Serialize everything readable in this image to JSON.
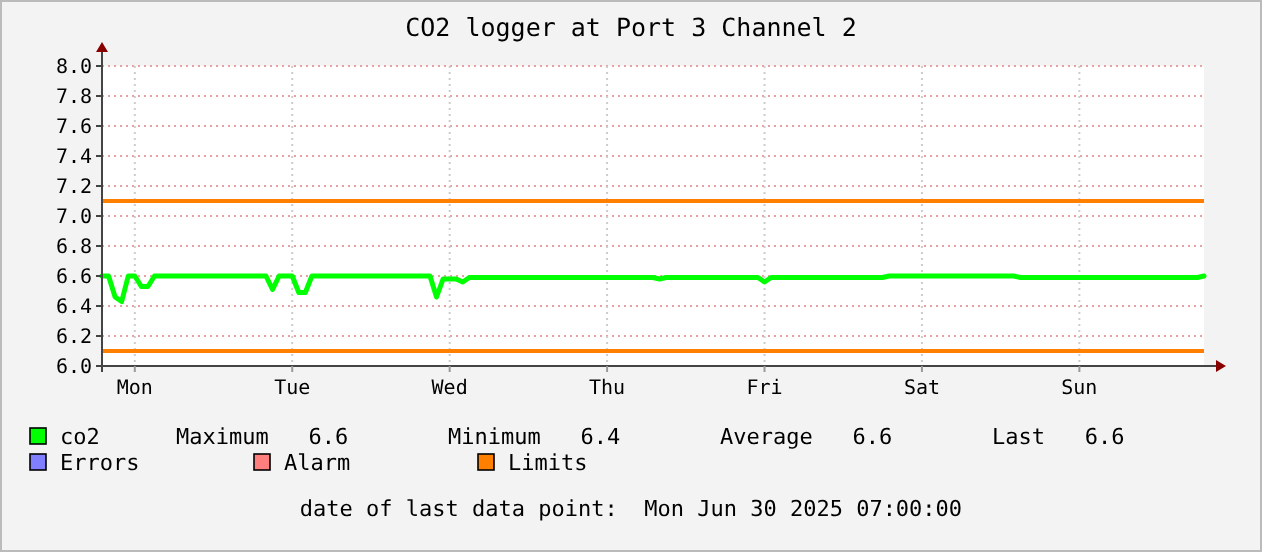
{
  "chart_data": {
    "type": "line",
    "title": "CO2 logger at Port 3 Channel 2",
    "categories": [
      null,
      null,
      null,
      null,
      null,
      "Mon",
      null,
      null,
      null,
      null,
      null,
      null,
      null,
      null,
      null,
      null,
      null,
      null,
      null,
      null,
      null,
      null,
      null,
      null,
      null,
      null,
      null,
      null,
      null,
      "Tue",
      null,
      null,
      null,
      null,
      null,
      null,
      null,
      null,
      null,
      null,
      null,
      null,
      null,
      null,
      null,
      null,
      null,
      null,
      null,
      null,
      null,
      null,
      null,
      "Wed",
      null,
      null,
      null,
      null,
      null,
      null,
      null,
      null,
      null,
      null,
      null,
      null,
      null,
      null,
      null,
      null,
      null,
      null,
      null,
      null,
      null,
      null,
      null,
      "Thu",
      null,
      null,
      null,
      null,
      null,
      null,
      null,
      null,
      null,
      null,
      null,
      null,
      null,
      null,
      null,
      null,
      null,
      null,
      null,
      null,
      null,
      null,
      null,
      "Fri",
      null,
      null,
      null,
      null,
      null,
      null,
      null,
      null,
      null,
      null,
      null,
      null,
      null,
      null,
      null,
      null,
      null,
      null,
      null,
      null,
      null,
      null,
      null,
      "Sat",
      null,
      null,
      null,
      null,
      null,
      null,
      null,
      null,
      null,
      null,
      null,
      null,
      null,
      null,
      null,
      null,
      null,
      null,
      null,
      null,
      null,
      null,
      null,
      "Sun",
      null,
      null,
      null,
      null,
      null,
      null,
      null,
      null,
      null,
      null,
      null,
      null,
      null,
      null,
      null,
      null,
      null,
      null,
      null
    ],
    "ylim": [
      6.0,
      8.0
    ],
    "yticks": [
      {
        "value": 6,
        "label": "6.0"
      },
      {
        "value": 6.2,
        "label": "6.2"
      },
      {
        "value": 6.4,
        "label": "6.4"
      },
      {
        "value": 6.6,
        "label": "6.6"
      },
      {
        "value": 6.8,
        "label": "6.8"
      },
      {
        "value": 7,
        "label": "7.0"
      },
      {
        "value": 7.2,
        "label": "7.2"
      },
      {
        "value": 7.4,
        "label": "7.4"
      },
      {
        "value": 7.6,
        "label": "7.6"
      },
      {
        "value": 7.8,
        "label": "7.8"
      },
      {
        "value": 8,
        "label": "8.0"
      }
    ],
    "grid": true,
    "legend": "bottom left",
    "marker": "none",
    "line_style": "solid",
    "series": [
      {
        "name": "co2",
        "color": "#00ff00",
        "values": [
          6.6,
          6.6,
          6.46,
          6.43,
          6.6,
          6.6,
          6.53,
          6.53,
          6.6,
          6.6,
          6.6,
          6.6,
          6.6,
          6.6,
          6.6,
          6.6,
          6.6,
          6.6,
          6.6,
          6.6,
          6.6,
          6.6,
          6.6,
          6.6,
          6.6,
          6.6,
          6.51,
          6.6,
          6.6,
          6.6,
          6.49,
          6.49,
          6.6,
          6.6,
          6.6,
          6.6,
          6.6,
          6.6,
          6.6,
          6.6,
          6.6,
          6.6,
          6.6,
          6.6,
          6.6,
          6.6,
          6.6,
          6.6,
          6.6,
          6.6,
          6.6,
          6.46,
          6.58,
          6.58,
          6.58,
          6.56,
          6.59,
          6.59,
          6.59,
          6.59,
          6.59,
          6.59,
          6.59,
          6.59,
          6.59,
          6.59,
          6.59,
          6.59,
          6.59,
          6.59,
          6.59,
          6.59,
          6.59,
          6.59,
          6.59,
          6.59,
          6.59,
          6.59,
          6.59,
          6.59,
          6.59,
          6.59,
          6.59,
          6.59,
          6.59,
          6.58,
          6.59,
          6.59,
          6.59,
          6.59,
          6.59,
          6.59,
          6.59,
          6.59,
          6.59,
          6.59,
          6.59,
          6.59,
          6.59,
          6.59,
          6.59,
          6.56,
          6.59,
          6.59,
          6.59,
          6.59,
          6.59,
          6.59,
          6.59,
          6.59,
          6.59,
          6.59,
          6.59,
          6.59,
          6.59,
          6.59,
          6.59,
          6.59,
          6.59,
          6.59,
          6.6,
          6.6,
          6.6,
          6.6,
          6.6,
          6.6,
          6.6,
          6.6,
          6.6,
          6.6,
          6.6,
          6.6,
          6.6,
          6.6,
          6.6,
          6.6,
          6.6,
          6.6,
          6.6,
          6.6,
          6.59,
          6.59,
          6.59,
          6.59,
          6.59,
          6.59,
          6.59,
          6.59,
          6.59,
          6.59,
          6.59,
          6.59,
          6.59,
          6.59,
          6.59,
          6.59,
          6.59,
          6.59,
          6.59,
          6.59,
          6.59,
          6.59,
          6.59,
          6.59,
          6.59,
          6.59,
          6.59,
          6.59,
          6.6
        ]
      },
      {
        "name": "Errors",
        "color": "#7f7fff",
        "values": [
          null,
          null,
          null,
          null,
          null,
          null,
          null,
          null,
          null,
          null,
          null,
          null,
          null,
          null,
          null,
          null,
          null,
          null,
          null,
          null,
          null,
          null,
          null,
          null,
          null,
          null,
          null,
          null,
          null,
          null,
          null,
          null,
          null,
          null,
          null,
          null,
          null,
          null,
          null,
          null,
          null,
          null,
          null,
          null,
          null,
          null,
          null,
          null,
          null,
          null,
          null,
          null,
          null,
          null,
          null,
          null,
          null,
          null,
          null,
          null,
          null,
          null,
          null,
          null,
          null,
          null,
          null,
          null,
          null,
          null,
          null,
          null,
          null,
          null,
          null,
          null,
          null,
          null,
          null,
          null,
          null,
          null,
          null,
          null,
          null,
          null,
          null,
          null,
          null,
          null,
          null,
          null,
          null,
          null,
          null,
          null,
          null,
          null,
          null,
          null,
          null,
          null,
          null,
          null,
          null,
          null,
          null,
          null,
          null,
          null,
          null,
          null,
          null,
          null,
          null,
          null,
          null,
          null,
          null,
          null,
          null,
          null,
          null,
          null,
          null,
          null,
          null,
          null,
          null,
          null,
          null,
          null,
          null,
          null,
          null,
          null,
          null,
          null,
          null,
          null,
          null,
          null,
          null,
          null,
          null,
          null,
          null,
          null,
          null,
          null,
          null,
          null,
          null,
          null,
          null,
          null,
          null,
          null,
          null,
          null,
          null,
          null,
          null,
          null,
          null,
          null,
          null,
          null,
          null
        ]
      },
      {
        "name": "Alarm",
        "color": "#ff7f7f",
        "values": [
          null,
          null,
          null,
          null,
          null,
          null,
          null,
          null,
          null,
          null,
          null,
          null,
          null,
          null,
          null,
          null,
          null,
          null,
          null,
          null,
          null,
          null,
          null,
          null,
          null,
          null,
          null,
          null,
          null,
          null,
          null,
          null,
          null,
          null,
          null,
          null,
          null,
          null,
          null,
          null,
          null,
          null,
          null,
          null,
          null,
          null,
          null,
          null,
          null,
          null,
          null,
          null,
          null,
          null,
          null,
          null,
          null,
          null,
          null,
          null,
          null,
          null,
          null,
          null,
          null,
          null,
          null,
          null,
          null,
          null,
          null,
          null,
          null,
          null,
          null,
          null,
          null,
          null,
          null,
          null,
          null,
          null,
          null,
          null,
          null,
          null,
          null,
          null,
          null,
          null,
          null,
          null,
          null,
          null,
          null,
          null,
          null,
          null,
          null,
          null,
          null,
          null,
          null,
          null,
          null,
          null,
          null,
          null,
          null,
          null,
          null,
          null,
          null,
          null,
          null,
          null,
          null,
          null,
          null,
          null,
          null,
          null,
          null,
          null,
          null,
          null,
          null,
          null,
          null,
          null,
          null,
          null,
          null,
          null,
          null,
          null,
          null,
          null,
          null,
          null,
          null,
          null,
          null,
          null,
          null,
          null,
          null,
          null,
          null,
          null,
          null,
          null,
          null,
          null,
          null,
          null,
          null,
          null,
          null,
          null,
          null,
          null,
          null,
          null,
          null,
          null,
          null,
          null,
          null
        ]
      }
    ],
    "ref_lines": [
      {
        "axis": "y",
        "value": 7.1,
        "label": "Limits",
        "color": "#ff7f00"
      },
      {
        "axis": "y",
        "value": 6.1,
        "color": "#ff7f00"
      }
    ],
    "annotations": [
      "Maximum   6.6",
      "Minimum   6.4",
      "Average   6.6",
      "Last   6.6",
      "date of last data point:  Mon Jun 30 2025 07:00:00"
    ]
  }
}
